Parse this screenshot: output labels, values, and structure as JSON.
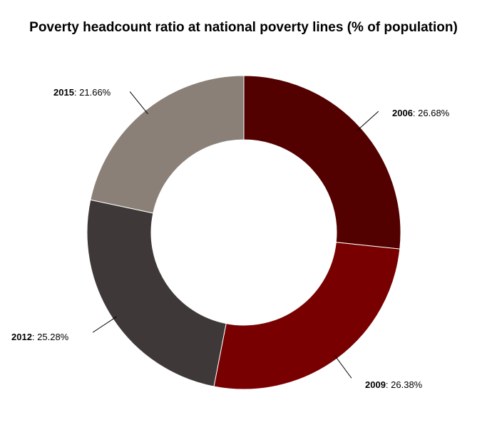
{
  "chart_data": {
    "type": "pie",
    "title": "Poverty headcount ratio at national poverty lines (% of population)",
    "hole": true,
    "slices": [
      {
        "label": "2006",
        "value": 26.68,
        "display": "26.68%",
        "color": "#520000"
      },
      {
        "label": "2009",
        "value": 26.38,
        "display": "26.38%",
        "color": "#780000"
      },
      {
        "label": "2012",
        "value": 25.28,
        "display": "25.28%",
        "color": "#3e3938"
      },
      {
        "label": "2015",
        "value": 21.66,
        "display": "21.66%",
        "color": "#8a8078"
      }
    ]
  }
}
